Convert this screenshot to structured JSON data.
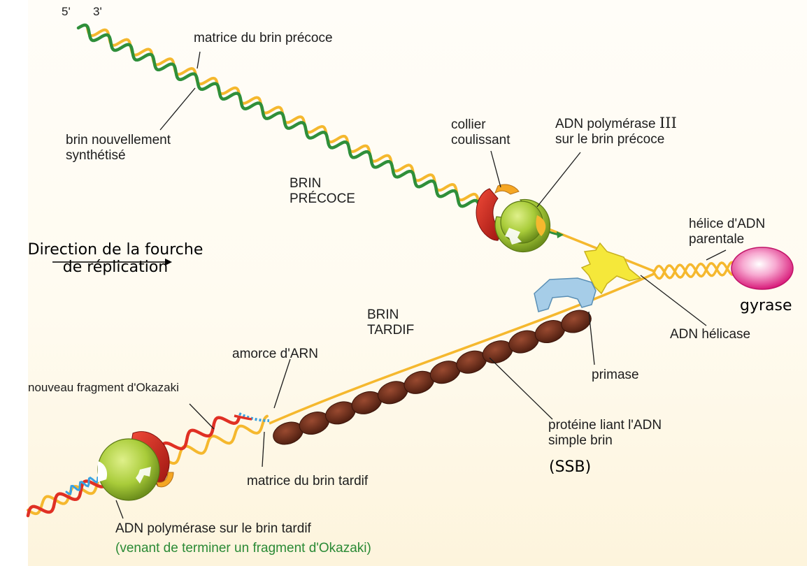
{
  "labels": {
    "five_prime": "5'",
    "three_prime": "3'",
    "matrice_precoce": "matrice du brin précoce",
    "brin_nouveau": [
      "brin nouvellement",
      "synthétisé"
    ],
    "brin_precoce": [
      "BRIN",
      "PRÉCOCE"
    ],
    "collier": [
      "collier",
      "coulissant"
    ],
    "polymerase_iii": {
      "prefix": "ADN polymérase ",
      "roman": "III",
      "line2": "sur le brin précoce"
    },
    "helice": [
      "hélice d'ADN",
      "parentale"
    ],
    "direction": [
      "Direction de la fourche",
      "de réplication"
    ],
    "gyrase": "gyrase",
    "brin_tardif": [
      "BRIN",
      "TARDIF"
    ],
    "helicase": "ADN hélicase",
    "amorce": "amorce d'ARN",
    "okazaki": "nouveau fragment d'Okazaki",
    "primase": "primase",
    "ssb": [
      "protéine liant l'ADN",
      "simple brin"
    ],
    "ssb_abbr": "(SSB)",
    "matrice_tardif": "matrice du brin tardif",
    "pol_tardif": "ADN polymérase sur le brin tardif",
    "pol_tardif_note": "(venant de terminer un fragment d'Okazaki)"
  },
  "colors": {
    "template_strand": "#f5b82e",
    "new_strand_leading": "#2f8f3a",
    "okazaki_fragment": "#e03024",
    "rna_primer": "#3aa0e0",
    "polymerase": "#a9cc3a",
    "clamp": "#c8201c",
    "ssb_protein": "#6e2e1c",
    "helicase": "#f5e83a",
    "primase": "#9cc8e8",
    "gyrase": "#e23c8c"
  }
}
